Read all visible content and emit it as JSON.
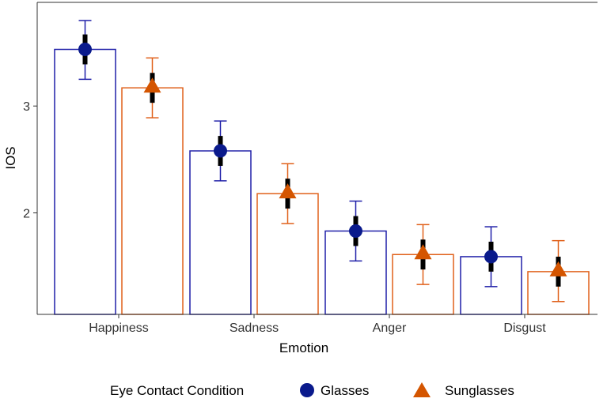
{
  "chart_data": {
    "type": "bar",
    "title": "",
    "xlabel": "Emotion",
    "ylabel": "IOS",
    "ylim": [
      1.05,
      3.97
    ],
    "yticks": [
      2,
      3
    ],
    "ytick_labels": [
      "2",
      "3"
    ],
    "categories": [
      "Happiness",
      "Sadness",
      "Anger",
      "Disgust"
    ],
    "grid": false,
    "legend": {
      "title": "Eye Contact Condition",
      "placement": "bottom"
    },
    "series": [
      {
        "name": "Glasses",
        "color": "#1f1fa8",
        "marker": "circle",
        "marker_color": "#0a1a8c",
        "values": [
          3.53,
          2.58,
          1.83,
          1.59
        ],
        "ci_low": [
          3.25,
          2.3,
          1.55,
          1.31
        ],
        "ci_high": [
          3.8,
          2.86,
          2.11,
          1.87
        ],
        "se_low": [
          3.39,
          2.44,
          1.69,
          1.45
        ],
        "se_high": [
          3.67,
          2.72,
          1.97,
          1.73
        ]
      },
      {
        "name": "Sunglasses",
        "color": "#e0601a",
        "marker": "triangle",
        "marker_color": "#d45500",
        "values": [
          3.17,
          2.18,
          1.61,
          1.45
        ],
        "ci_low": [
          2.89,
          1.9,
          1.33,
          1.17
        ],
        "ci_high": [
          3.45,
          2.46,
          1.89,
          1.74
        ],
        "se_low": [
          3.03,
          2.04,
          1.47,
          1.31
        ],
        "se_high": [
          3.31,
          2.32,
          1.75,
          1.59
        ]
      }
    ]
  }
}
